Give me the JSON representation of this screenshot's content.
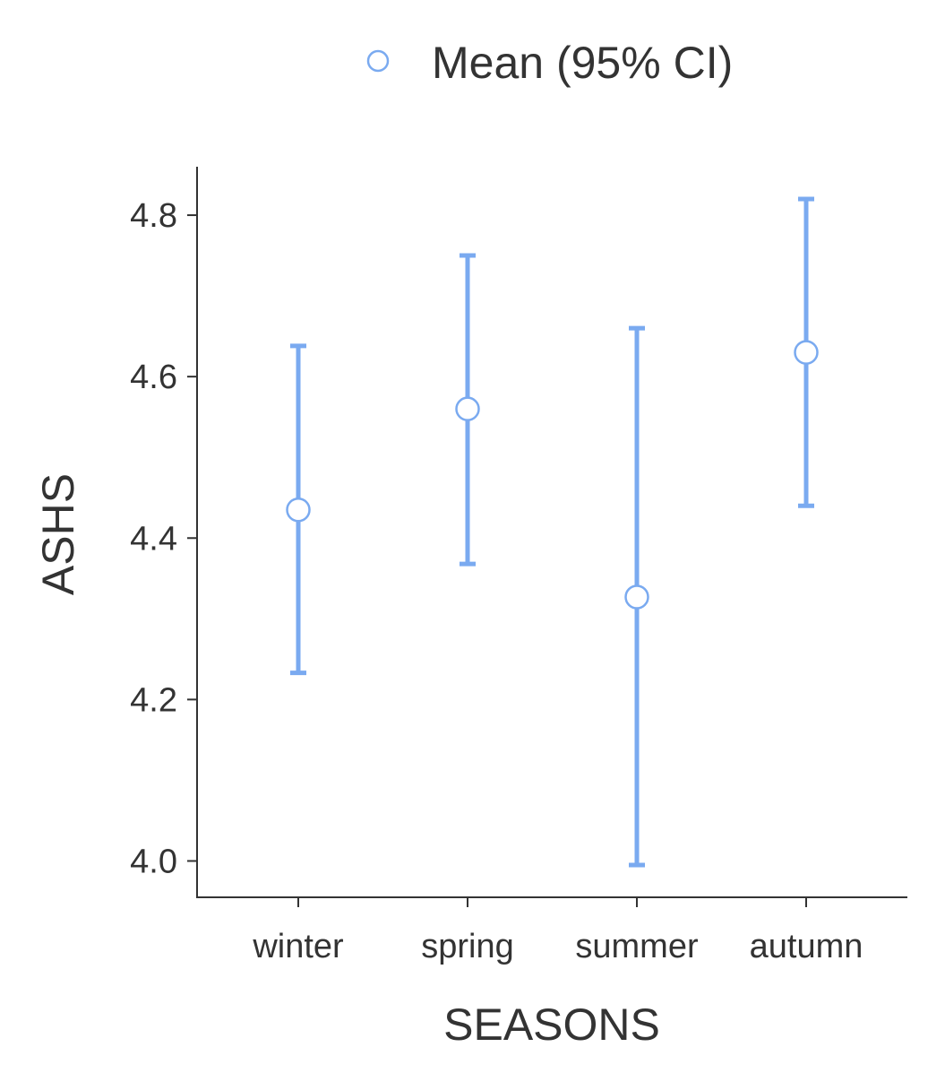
{
  "chart_data": {
    "type": "scatter",
    "title": "",
    "xlabel": "SEASONS",
    "ylabel": "ASHS",
    "categories": [
      "winter",
      "spring",
      "summer",
      "autumn"
    ],
    "series": [
      {
        "name": "Mean (95% CI)",
        "values": [
          4.435,
          4.56,
          4.327,
          4.63
        ],
        "ci_lower": [
          4.233,
          4.368,
          3.995,
          4.44
        ],
        "ci_upper": [
          4.638,
          4.75,
          4.66,
          4.82
        ]
      }
    ],
    "ylim": [
      3.955,
      4.86
    ],
    "yticks": [
      4.0,
      4.2,
      4.4,
      4.6,
      4.8
    ],
    "ytick_labels": [
      "4.0",
      "4.2",
      "4.4",
      "4.6",
      "4.8"
    ],
    "grid": false,
    "legend_position": "top",
    "colors": {
      "series": "#7aaaf0",
      "axis": "#333333",
      "marker_fill": "#ffffff"
    }
  }
}
